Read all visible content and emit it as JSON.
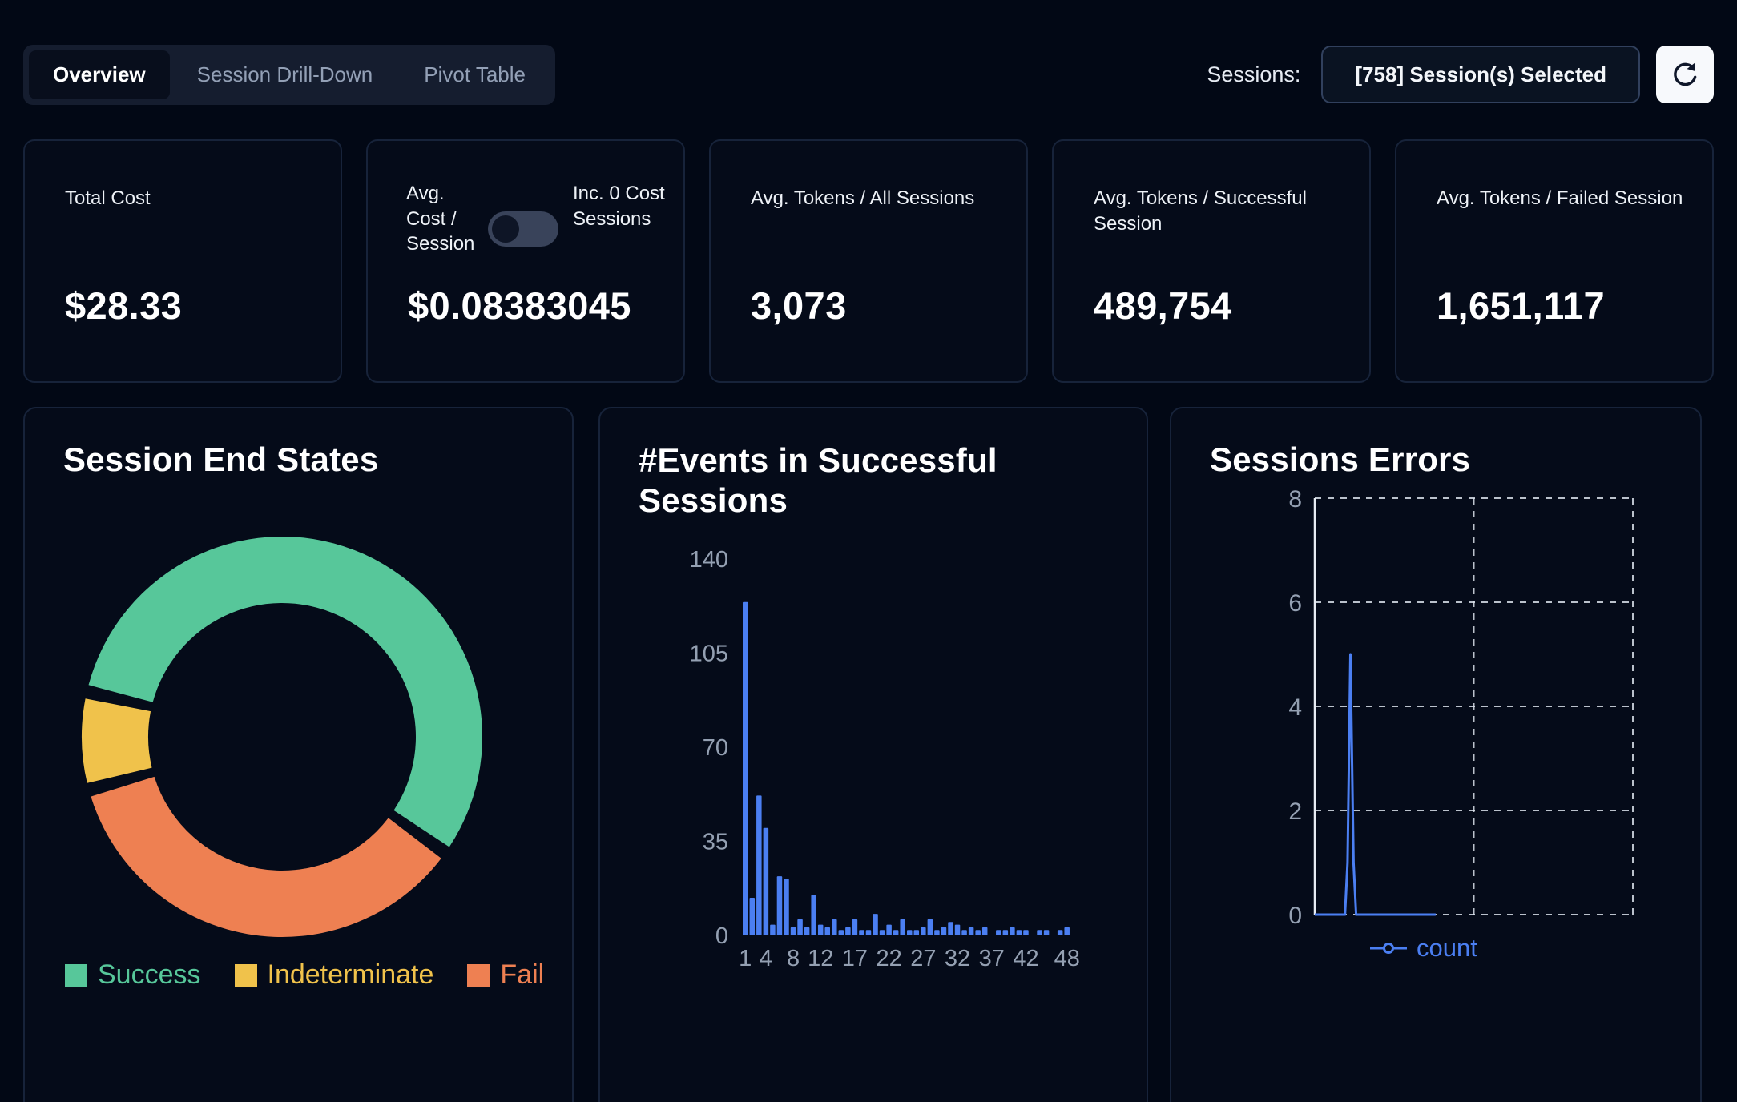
{
  "header": {
    "tabs": [
      {
        "label": "Overview",
        "active": true
      },
      {
        "label": "Session Drill-Down",
        "active": false
      },
      {
        "label": "Pivot Table",
        "active": false
      }
    ],
    "sessions_label": "Sessions:",
    "sessions_selected": "[758] Session(s) Selected",
    "refresh_icon": "refresh-circular-arrow"
  },
  "stats": [
    {
      "title": "Total Cost",
      "value": "$28.33"
    },
    {
      "title": "Avg. Cost / Session",
      "toggle": {
        "label": "Inc. 0 Cost Sessions",
        "state": "off"
      },
      "value": "$0.08383045"
    },
    {
      "title": "Avg. Tokens / All Sessions",
      "value": "3,073"
    },
    {
      "title": "Avg. Tokens / Successful Session",
      "value": "489,754"
    },
    {
      "title": "Avg. Tokens / Failed Session",
      "value": "1,651,117"
    }
  ],
  "chart_data": [
    {
      "type": "pie",
      "title": "Session End States",
      "donut": true,
      "slices": [
        {
          "label": "Success",
          "value": 57,
          "color": "#57c79a"
        },
        {
          "label": "Indeterminate",
          "value": 7,
          "color": "#f0c24b"
        },
        {
          "label": "Fail",
          "value": 36,
          "color": "#ee8052"
        }
      ],
      "draw_order": [
        "Success",
        "Fail",
        "Indeterminate"
      ],
      "start_angle": 285,
      "gap_deg": 4,
      "legend_position": "bottom"
    },
    {
      "type": "bar",
      "title": "#Events in Successful Sessions",
      "xlabel": "",
      "ylabel": "",
      "ylim": [
        0,
        140
      ],
      "yticks": [
        0,
        35,
        70,
        105,
        140
      ],
      "x_tick_labels": [
        "1",
        "4",
        "8",
        "12",
        "17",
        "22",
        "27",
        "32",
        "37",
        "42",
        "48"
      ],
      "x_tick_bins": [
        1,
        4,
        8,
        12,
        17,
        22,
        27,
        32,
        37,
        42,
        48
      ],
      "values": [
        124,
        14,
        52,
        40,
        4,
        22,
        21,
        3,
        6,
        3,
        15,
        4,
        3,
        6,
        2,
        3,
        6,
        2,
        2,
        8,
        2,
        4,
        2,
        6,
        2,
        2,
        3,
        6,
        2,
        3,
        5,
        4,
        2,
        3,
        2,
        3,
        0,
        2,
        2,
        3,
        2,
        2,
        0,
        2,
        2,
        0,
        2,
        3
      ],
      "bar_color": "#4b7ff2",
      "grid": false
    },
    {
      "type": "line",
      "title": "Sessions Errors",
      "ylim": [
        0,
        8
      ],
      "yticks": [
        0,
        2,
        4,
        6,
        8
      ],
      "grid": "dashed",
      "series": [
        {
          "name": "count",
          "color": "#4b7ff2",
          "points": [
            [
              0,
              0
            ],
            [
              0.095,
              0
            ],
            [
              0.103,
              1
            ],
            [
              0.112,
              5
            ],
            [
              0.122,
              1
            ],
            [
              0.13,
              0
            ],
            [
              0.38,
              0
            ]
          ]
        }
      ],
      "legend_position": "bottom"
    }
  ],
  "colors": {
    "page_bg": "#020815",
    "card_bg": "#050b19",
    "card_border": "#17233a",
    "accent_blue": "#4b7ff2",
    "success_green": "#57c79a",
    "indeterminate_yellow": "#f0c24b",
    "fail_orange": "#ee8052",
    "axis_gray": "#94a0b2",
    "tab_inactive": "#93a0b6"
  }
}
